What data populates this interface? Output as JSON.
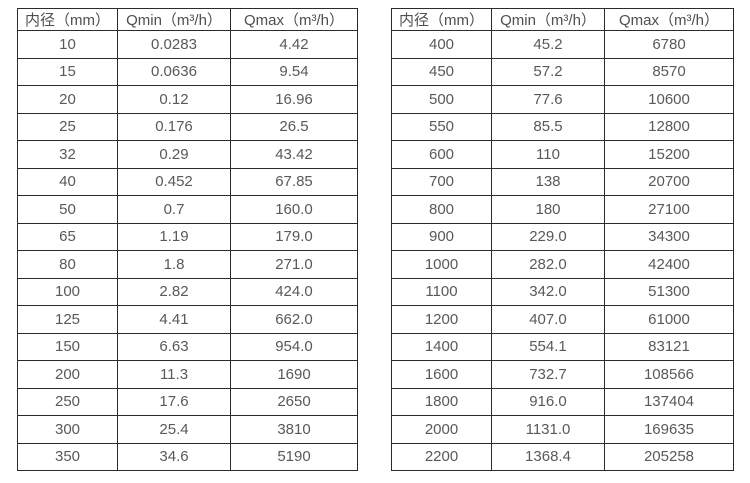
{
  "page": {
    "background": "#ffffff",
    "border_color": "#2b2b2b",
    "text_color": "#595959"
  },
  "tables": [
    {
      "name": "small-diameter-flow-table",
      "headers": [
        "内径（mm）",
        "Qmin（m³/h）",
        "Qmax（m³/h）"
      ],
      "rows": [
        [
          "10",
          "0.0283",
          "4.42"
        ],
        [
          "15",
          "0.0636",
          "9.54"
        ],
        [
          "20",
          "0.12",
          "16.96"
        ],
        [
          "25",
          "0.176",
          "26.5"
        ],
        [
          "32",
          "0.29",
          "43.42"
        ],
        [
          "40",
          "0.452",
          "67.85"
        ],
        [
          "50",
          "0.7",
          "160.0"
        ],
        [
          "65",
          "1.19",
          "179.0"
        ],
        [
          "80",
          "1.8",
          "271.0"
        ],
        [
          "100",
          "2.82",
          "424.0"
        ],
        [
          "125",
          "4.41",
          "662.0"
        ],
        [
          "150",
          "6.63",
          "954.0"
        ],
        [
          "200",
          "11.3",
          "1690"
        ],
        [
          "250",
          "17.6",
          "2650"
        ],
        [
          "300",
          "25.4",
          "3810"
        ],
        [
          "350",
          "34.6",
          "5190"
        ]
      ]
    },
    {
      "name": "large-diameter-flow-table",
      "headers": [
        "内径（mm）",
        "Qmin（m³/h）",
        "Qmax（m³/h）"
      ],
      "rows": [
        [
          "400",
          "45.2",
          "6780"
        ],
        [
          "450",
          "57.2",
          "8570"
        ],
        [
          "500",
          "77.6",
          "10600"
        ],
        [
          "550",
          "85.5",
          "12800"
        ],
        [
          "600",
          "110",
          "15200"
        ],
        [
          "700",
          "138",
          "20700"
        ],
        [
          "800",
          "180",
          "27100"
        ],
        [
          "900",
          "229.0",
          "34300"
        ],
        [
          "1000",
          "282.0",
          "42400"
        ],
        [
          "1100",
          "342.0",
          "51300"
        ],
        [
          "1200",
          "407.0",
          "61000"
        ],
        [
          "1400",
          "554.1",
          "83121"
        ],
        [
          "1600",
          "732.7",
          "108566"
        ],
        [
          "1800",
          "916.0",
          "137404"
        ],
        [
          "2000",
          "1131.0",
          "169635"
        ],
        [
          "2200",
          "1368.4",
          "205258"
        ]
      ]
    }
  ]
}
